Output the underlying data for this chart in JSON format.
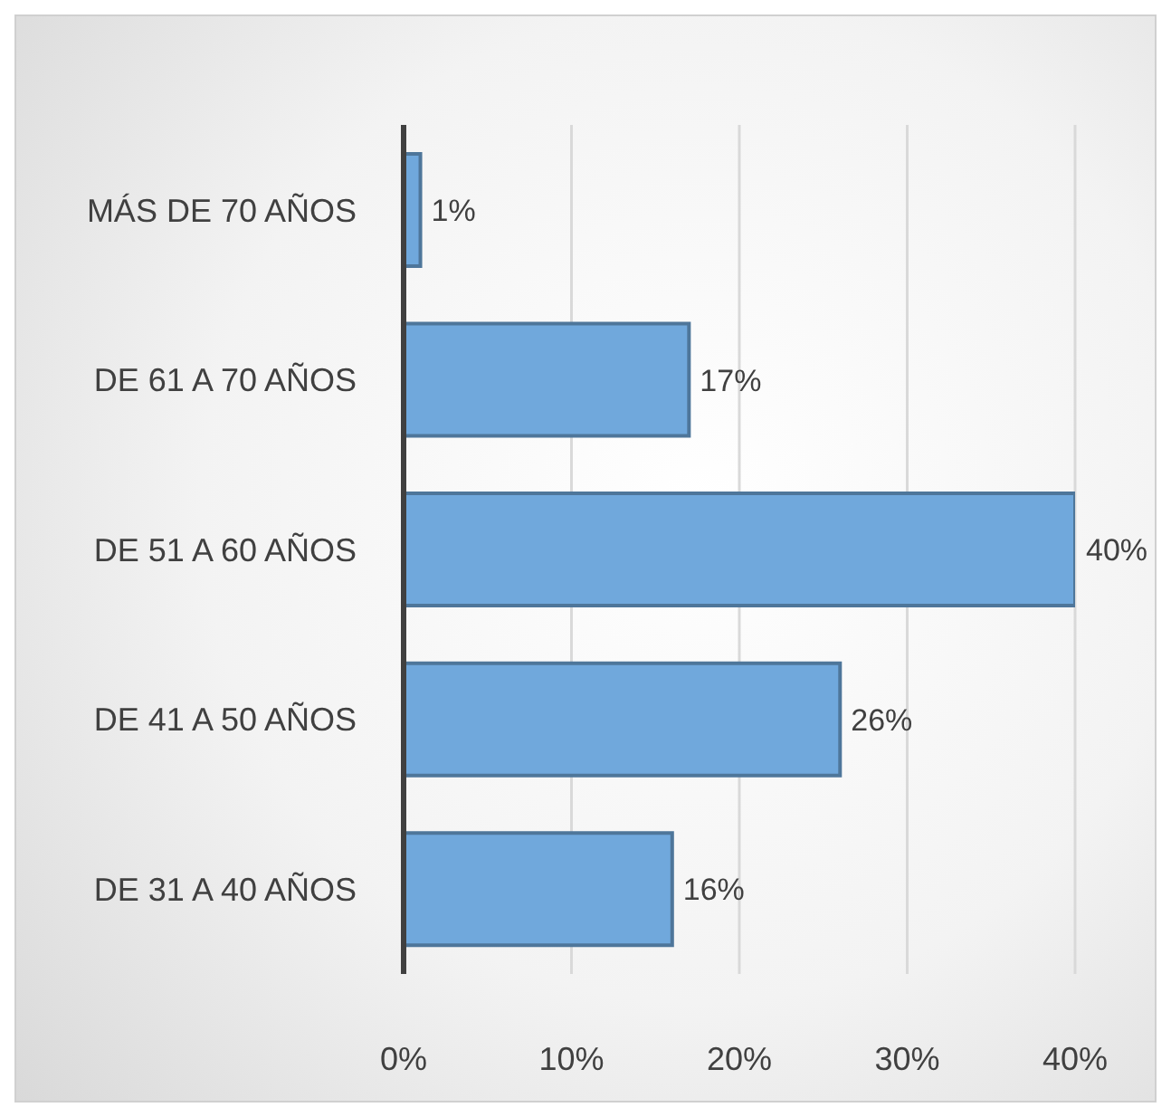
{
  "chart_data": {
    "type": "bar",
    "orientation": "horizontal",
    "categories": [
      "MÁS DE 70 AÑOS",
      "DE 61 A 70 AÑOS",
      "DE 51 A 60 AÑOS",
      "DE 41 A 50 AÑOS",
      "DE 31 A 40 AÑOS"
    ],
    "values": [
      1,
      17,
      40,
      26,
      16
    ],
    "color": "#70a8dc",
    "value_labels": [
      "1%",
      "17%",
      "40%",
      "26%",
      "16%"
    ],
    "xlim": [
      0,
      40
    ],
    "xticks": [
      {
        "value": 0,
        "label": "0%"
      },
      {
        "value": 10,
        "label": "10%"
      },
      {
        "value": 20,
        "label": "20%"
      },
      {
        "value": 30,
        "label": "30%"
      },
      {
        "value": 40,
        "label": "40%"
      }
    ],
    "grid": "x"
  }
}
